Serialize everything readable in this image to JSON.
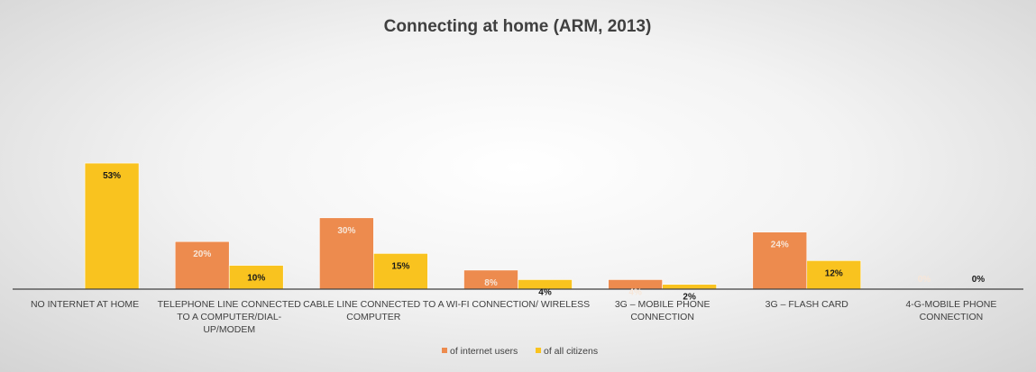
{
  "chart_data": {
    "type": "bar",
    "title": "Connecting at home (ARM, 2013)",
    "categories": [
      "NO INTERNET AT HOME",
      "TELEPHONE LINE CONNECTED TO A COMPUTER/DIAL-UP/MODEM",
      "CABLE LINE CONNECTED TO A COMPUTER",
      "WI-FI CONNECTION/ WIRELESS",
      "3G – MOBILE PHONE CONNECTION",
      "3G – FLASH CARD",
      "4-G-MOBILE PHONE CONNECTION"
    ],
    "category_lines": [
      [
        "NO INTERNET AT HOME"
      ],
      [
        "TELEPHONE LINE CONNECTED",
        "TO A COMPUTER/DIAL-",
        "UP/MODEM"
      ],
      [
        "CABLE LINE CONNECTED TO A",
        "COMPUTER"
      ],
      [
        "WI-FI CONNECTION/ WIRELESS"
      ],
      [
        "3G – MOBILE PHONE",
        "CONNECTION"
      ],
      [
        "3G – FLASH CARD"
      ],
      [
        "4-G-MOBILE PHONE",
        "CONNECTION"
      ]
    ],
    "series": [
      {
        "name": "of internet users",
        "color": "#ED8B4E",
        "label_color": "#F7E6D8",
        "values": [
          null,
          20,
          30,
          8,
          4,
          24,
          0
        ],
        "labels": [
          "",
          "20%",
          "30%",
          "8%",
          "4%",
          "24%",
          "0%"
        ]
      },
      {
        "name": "of all citizens",
        "color": "#F9C31F",
        "label_color": "#1a1a1a",
        "values": [
          53,
          10,
          15,
          4,
          2,
          12,
          0
        ],
        "labels": [
          "53%",
          "10%",
          "15%",
          "4%",
          "2%",
          "12%",
          "0%"
        ]
      }
    ],
    "ylim": [
      0,
      100
    ],
    "grid": false,
    "legend_position": "bottom"
  }
}
